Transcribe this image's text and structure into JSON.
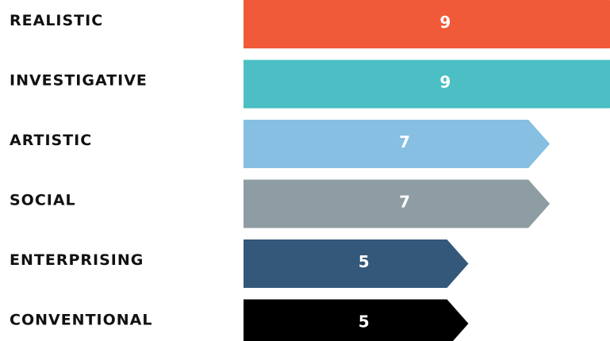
{
  "chart_data": {
    "type": "bar",
    "orientation": "horizontal",
    "title": "",
    "xlabel": "",
    "ylabel": "",
    "categories": [
      "REALISTIC",
      "INVESTIGATIVE",
      "ARTISTIC",
      "SOCIAL",
      "ENTERPRISING",
      "CONVENTIONAL"
    ],
    "values": [
      9,
      9,
      7,
      7,
      5,
      5
    ],
    "value_labels": [
      "9",
      "9",
      "7",
      "7",
      "5",
      "5"
    ],
    "colors": [
      "#F15A38",
      "#4BBFC3",
      "#86BFE2",
      "#8E9CA3",
      "#33587A",
      "#000000"
    ],
    "xlim": [
      0,
      9
    ],
    "grid": false,
    "legend": "none"
  }
}
